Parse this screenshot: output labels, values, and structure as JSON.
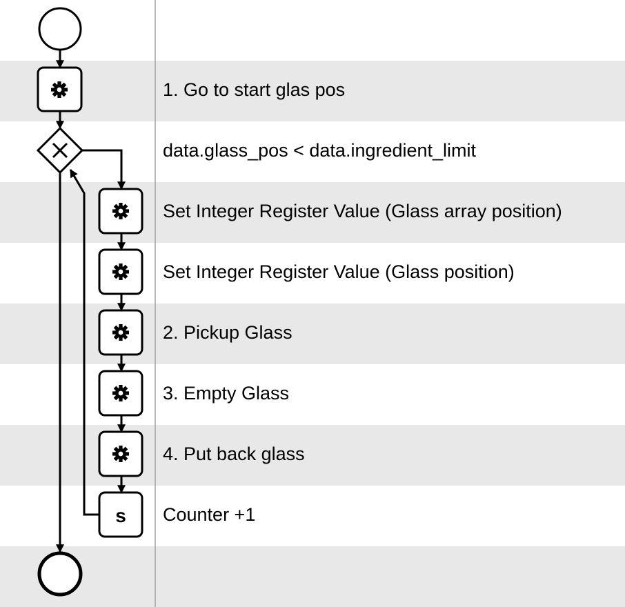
{
  "rows": [
    {
      "label": "",
      "shaded": false
    },
    {
      "label": "1. Go to start glas pos",
      "shaded": true
    },
    {
      "label": "data.glass_pos < data.ingredient_limit",
      "shaded": false
    },
    {
      "label": "Set Integer Register Value (Glass array position)",
      "shaded": true
    },
    {
      "label": "Set Integer Register Value (Glass position)",
      "shaded": false
    },
    {
      "label": "2. Pickup Glass",
      "shaded": true
    },
    {
      "label": "3. Empty Glass",
      "shaded": false
    },
    {
      "label": "4. Put back glass",
      "shaded": true
    },
    {
      "label": "Counter +1",
      "shaded": false
    },
    {
      "label": "",
      "shaded": true
    }
  ],
  "nodes": {
    "start": {
      "kind": "start-event"
    },
    "task_go_start": {
      "kind": "service-task",
      "icon": "gear-icon"
    },
    "gateway": {
      "kind": "exclusive-gateway",
      "icon": "x-icon"
    },
    "task_set_array": {
      "kind": "service-task",
      "icon": "gear-icon"
    },
    "task_set_pos": {
      "kind": "service-task",
      "icon": "gear-icon"
    },
    "task_pickup": {
      "kind": "service-task",
      "icon": "gear-icon"
    },
    "task_empty": {
      "kind": "service-task",
      "icon": "gear-icon"
    },
    "task_putback": {
      "kind": "service-task",
      "icon": "gear-icon"
    },
    "task_counter": {
      "kind": "script-task",
      "glyph": "s"
    },
    "end": {
      "kind": "end-event"
    }
  }
}
